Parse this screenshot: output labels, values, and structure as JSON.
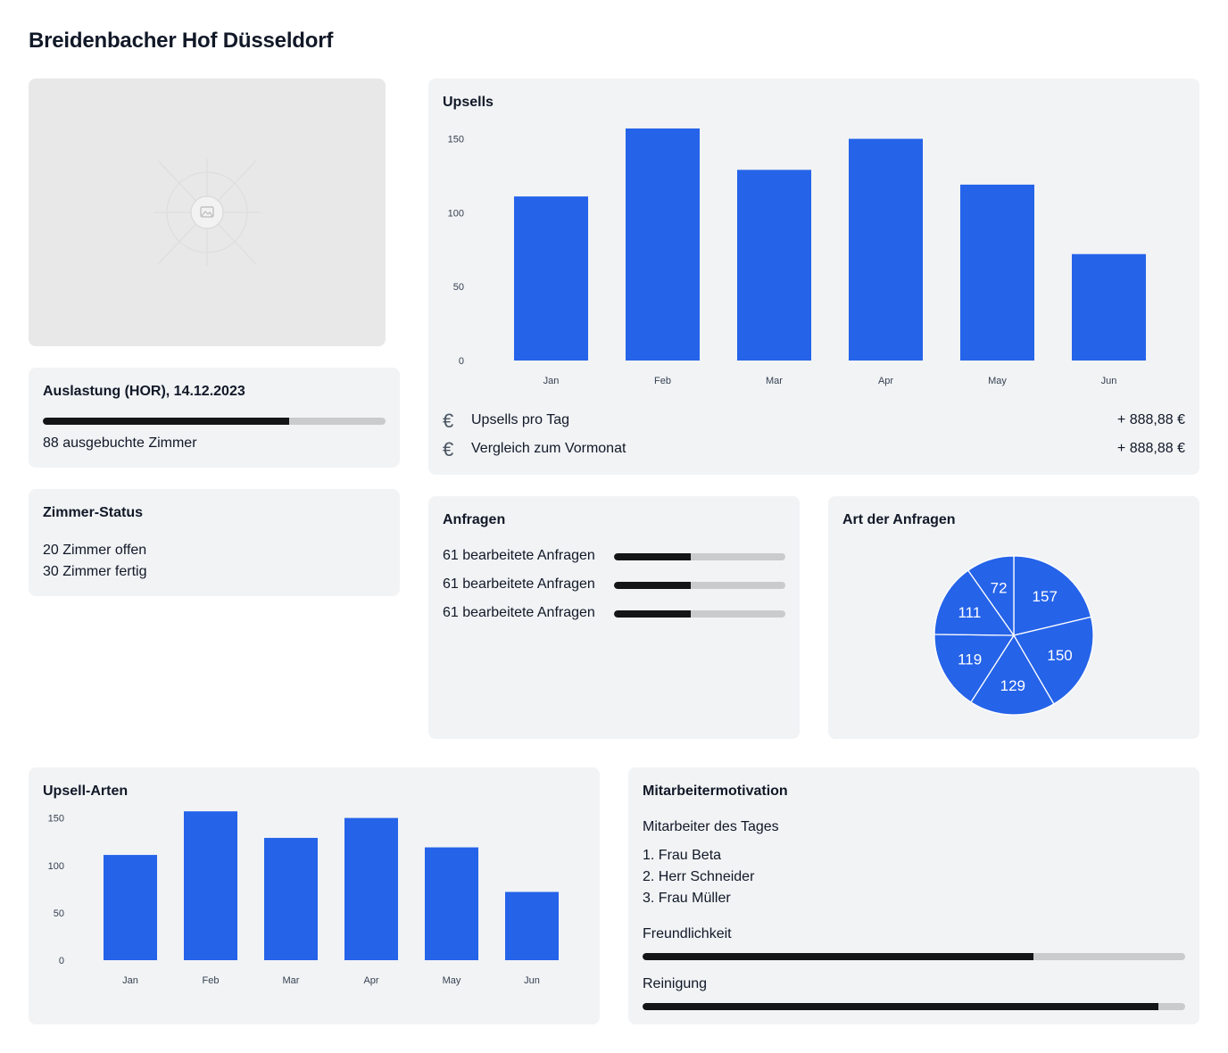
{
  "page": {
    "title": "Breidenbacher Hof Düsseldorf"
  },
  "image_placeholder": {
    "icon": "image-icon"
  },
  "occupancy": {
    "title": "Auslastung (HOR), 14.12.2023",
    "progress": 0.72,
    "caption": "88 ausgebuchte Zimmer"
  },
  "room_status": {
    "title": "Zimmer-Status",
    "lines": [
      "20 Zimmer offen",
      "30 Zimmer fertig"
    ]
  },
  "upsells": {
    "title": "Upsells",
    "stats": [
      {
        "icon": "euro-icon",
        "label": "Upsells pro Tag",
        "value": "+ 888,88 €"
      },
      {
        "icon": "euro-icon",
        "label": "Vergleich zum Vormonat",
        "value": "+ 888,88 €"
      }
    ]
  },
  "requests": {
    "title": "Anfragen",
    "items": [
      {
        "label": "61 bearbeitete Anfragen",
        "progress": 0.45
      },
      {
        "label": "61 bearbeitete Anfragen",
        "progress": 0.45
      },
      {
        "label": "61 bearbeitete Anfragen",
        "progress": 0.45
      }
    ]
  },
  "request_types": {
    "title": "Art der Anfragen"
  },
  "upsell_types": {
    "title": "Upsell-Arten"
  },
  "motivation": {
    "title": "Mitarbeitermotivation",
    "subtitle": "Mitarbeiter des Tages",
    "ranking": [
      "1. Frau Beta",
      "2. Herr Schneider",
      "3. Frau Müller"
    ],
    "metrics": [
      {
        "label": "Freundlichkeit",
        "progress": 0.72
      },
      {
        "label": "Reinigung",
        "progress": 0.95
      }
    ]
  },
  "colors": {
    "accent": "#2563e9",
    "card_bg": "#f1f3f5",
    "bar_track": "#c9cbcd",
    "bar_fill": "#141517"
  },
  "chart_data": [
    {
      "id": "upsells",
      "type": "bar",
      "categories": [
        "Jan",
        "Feb",
        "Mar",
        "Apr",
        "May",
        "Jun"
      ],
      "values": [
        111,
        157,
        129,
        150,
        119,
        72
      ],
      "yticks": [
        0,
        50,
        100,
        150
      ],
      "ylim": [
        0,
        160
      ],
      "grid": false
    },
    {
      "id": "request_types",
      "type": "pie",
      "values": [
        157,
        150,
        129,
        119,
        111,
        72
      ]
    },
    {
      "id": "upsell_types",
      "type": "bar",
      "categories": [
        "Jan",
        "Feb",
        "Mar",
        "Apr",
        "May",
        "Jun"
      ],
      "values": [
        111,
        157,
        129,
        150,
        119,
        72
      ],
      "yticks": [
        0,
        50,
        100,
        150
      ],
      "ylim": [
        0,
        160
      ],
      "grid": false
    }
  ]
}
